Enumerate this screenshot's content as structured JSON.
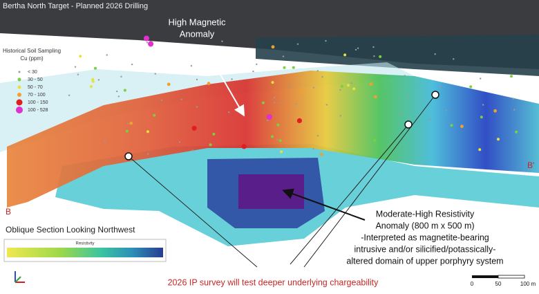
{
  "title": "Bertha North Target - Planned 2026 Drilling",
  "callout_top": {
    "lines": [
      "High Magnetic",
      "Anomaly"
    ]
  },
  "legend": {
    "title": [
      "Historical Soil Sampling",
      "Cu (ppm)"
    ],
    "items": [
      "< 30",
      "30 - 50",
      "50 - 70",
      "70 - 100",
      "100 - 150",
      "100 - 528"
    ]
  },
  "section_ends": {
    "left": "B",
    "right": "B'"
  },
  "view_label": "Oblique Section Looking Northwest",
  "colorbar": {
    "title": "Resistivity"
  },
  "callout_right": {
    "lines": [
      "Moderate-High Resistivity",
      "Anomaly (800 m x 500 m)",
      "-Interpreted as magnetite-bearing",
      "intrusive and/or silicified/potassically-",
      "altered domain of upper porphyry system"
    ]
  },
  "caption": "2026 IP survey will test deeper underlying chargeability",
  "scale_bar": {
    "labels": [
      "0",
      "50",
      "100 m"
    ]
  }
}
